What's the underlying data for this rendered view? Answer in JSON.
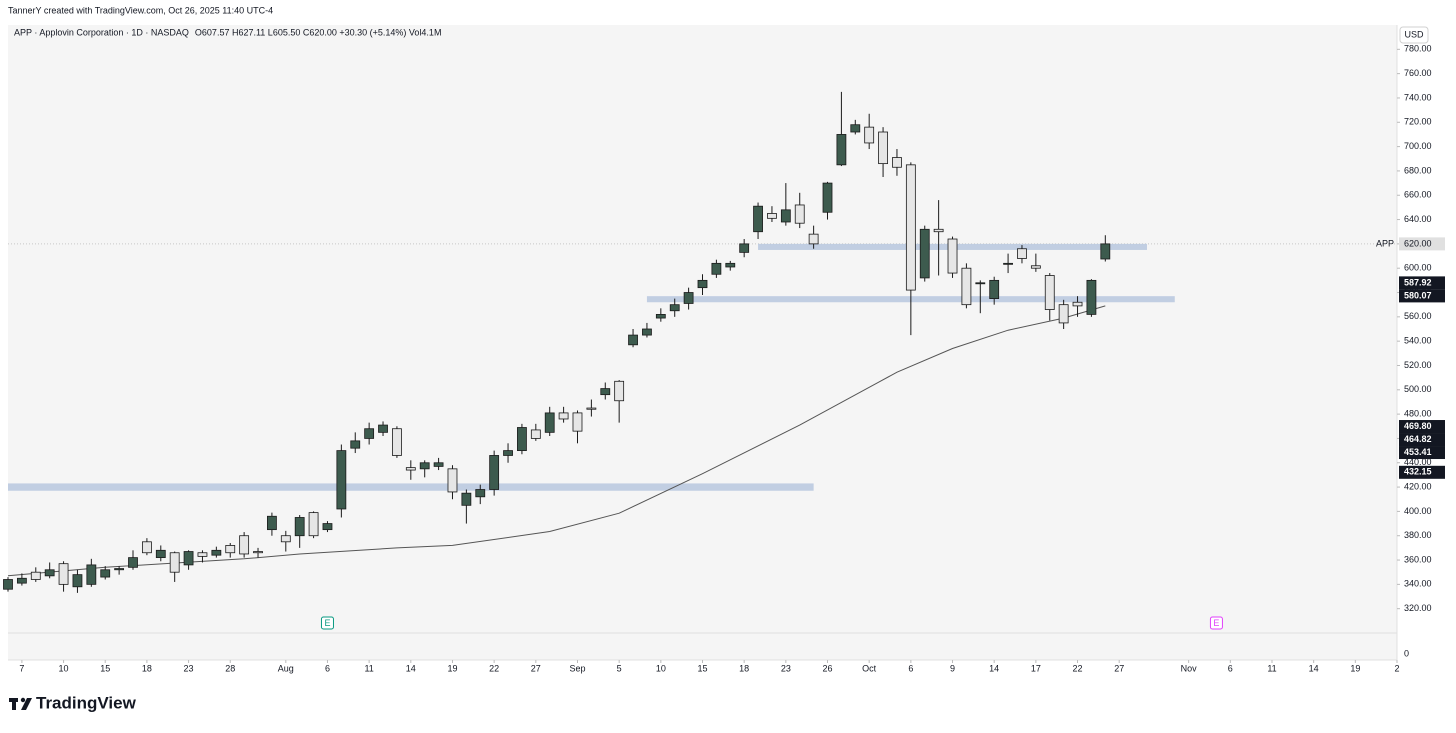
{
  "header": {
    "credit": "TannerY created with TradingView.com, Oct 26, 2025 11:40 UTC-4",
    "legend": "APP · Applovin Corporation · 1D · NASDAQ",
    "ohlc": "O607.57 H627.11 L605.50 C620.00 +30.30 (+5.14%) Vol4.1M",
    "currency": "USD"
  },
  "chart_data": {
    "type": "candlestick",
    "candles": {
      "x": [
        -1,
        0,
        1,
        2,
        3,
        4,
        5,
        6,
        7,
        8,
        9,
        10,
        11,
        12,
        13,
        14,
        15,
        16,
        17,
        18,
        19,
        20,
        21,
        22,
        23,
        24,
        25,
        26,
        27,
        28,
        29,
        30,
        31,
        32,
        33,
        34,
        35,
        36,
        37,
        38,
        39,
        40,
        41,
        42,
        43,
        44,
        45,
        46,
        47,
        48,
        49,
        50,
        51,
        52,
        53,
        54,
        55,
        56,
        57,
        58,
        59,
        60,
        61,
        62,
        63,
        64,
        65,
        66,
        67,
        68,
        69,
        70,
        71,
        72,
        73,
        74,
        75,
        76,
        77,
        78
      ],
      "open": [
        336,
        341,
        350,
        347,
        357,
        338,
        340,
        346,
        352,
        354,
        375,
        362,
        366,
        356,
        366,
        364,
        372,
        380,
        367,
        385,
        380,
        380,
        399,
        385,
        402,
        452,
        460,
        465,
        468,
        436,
        435,
        437,
        435,
        405,
        412,
        418,
        446,
        450,
        467,
        465,
        481,
        481,
        485,
        496,
        507,
        537,
        545,
        559,
        565,
        571,
        584,
        595,
        601,
        613,
        630,
        645,
        638,
        652,
        628,
        646,
        685,
        712,
        716,
        712,
        691,
        685,
        592,
        632,
        624,
        600,
        588,
        575,
        604,
        616,
        602,
        594,
        570,
        572,
        562,
        607.57
      ],
      "high": [
        346,
        349,
        354,
        358,
        359,
        352,
        361,
        355,
        355,
        368,
        378,
        372,
        367,
        368,
        368,
        371,
        374,
        383,
        370,
        399,
        384,
        397,
        400,
        392,
        455,
        465,
        473,
        474,
        470,
        442,
        442,
        444,
        438,
        418,
        422,
        450,
        456,
        472,
        472,
        486,
        486,
        483,
        492,
        506,
        508,
        550,
        555,
        567,
        575,
        584,
        595,
        607,
        606,
        624,
        654,
        651,
        670,
        662,
        635,
        671,
        745,
        722,
        727,
        716,
        698,
        687,
        635,
        656,
        626,
        604,
        590,
        593,
        612,
        619,
        612,
        596,
        574,
        577,
        591,
        627.11
      ],
      "low": [
        334,
        339,
        342,
        345,
        334,
        333,
        338,
        344,
        348,
        352,
        364,
        359,
        342,
        352,
        358,
        362,
        362,
        362,
        362,
        380,
        367,
        370,
        378,
        383,
        395,
        448,
        455,
        462,
        444,
        426,
        428,
        434,
        410,
        390,
        406,
        413,
        440,
        447,
        458,
        462,
        473,
        456,
        478,
        492,
        473,
        535,
        543,
        556,
        560,
        566,
        578,
        592,
        598,
        609,
        624,
        638,
        635,
        633,
        616,
        640,
        684,
        710,
        698,
        675,
        676,
        545,
        589,
        594,
        592,
        567,
        563,
        570,
        596,
        604,
        597,
        557,
        550,
        560,
        560,
        605.5
      ],
      "close": [
        344,
        345,
        344,
        352,
        340,
        348,
        356,
        352,
        353,
        362,
        366,
        368,
        350,
        367,
        363,
        368,
        366,
        365,
        366,
        396,
        375,
        395,
        380,
        390,
        450,
        458,
        468,
        471,
        446,
        434,
        440,
        440,
        416,
        415,
        418,
        446,
        450,
        469,
        460,
        481,
        476,
        466,
        484,
        501,
        491,
        545,
        550,
        562,
        570,
        580,
        590,
        604,
        604,
        620,
        651,
        641,
        648,
        637,
        620,
        670,
        710,
        718,
        703,
        686,
        683,
        582,
        632,
        630,
        596,
        570,
        588,
        590,
        604,
        608,
        600,
        566,
        555,
        569,
        590,
        620
      ],
      "up_color": "#3d5b4e",
      "down_color": "#e6e6e6"
    },
    "moving_average": {
      "x": [
        -1,
        6,
        16,
        20,
        27,
        31,
        38,
        43,
        49,
        56,
        63,
        67,
        71,
        75,
        78
      ],
      "values": [
        347,
        354,
        361,
        365,
        370,
        372,
        383.5,
        398.5,
        431,
        471,
        514.5,
        534,
        549,
        559,
        569
      ],
      "color": "#555555"
    },
    "zones": [
      {
        "from": -1,
        "to": 57,
        "low": 417,
        "high": 423
      },
      {
        "from": 45,
        "to": 83,
        "low": 572,
        "high": 577
      },
      {
        "from": 53,
        "to": 81,
        "low": 615,
        "high": 620
      }
    ],
    "zone_color": "#b7c7de",
    "last_price": {
      "symbol": "APP",
      "value": 620,
      "label": "620.00"
    },
    "price_badges": [
      587.92,
      580.07,
      {
        "value": 469.8,
        "label": "469.80"
      },
      464.82,
      453.41,
      432.15
    ],
    "events": [
      {
        "x": 22,
        "label": "E",
        "color": "#089981"
      },
      {
        "x": 86,
        "label": "E",
        "color": "#e040fb"
      }
    ],
    "xlim": [
      -1,
      99
    ],
    "ylim": [
      300,
      800
    ],
    "yticks": [
      {
        "value": 320,
        "label": "320.00"
      },
      {
        "value": 340,
        "label": "340.00"
      },
      {
        "value": 360,
        "label": "360.00"
      },
      {
        "value": 380,
        "label": "380.00"
      },
      {
        "value": 400,
        "label": "400.00"
      },
      {
        "value": 420,
        "label": "420.00"
      },
      {
        "value": 440,
        "label": "440.00"
      },
      {
        "value": 460,
        "label": "460.00"
      },
      {
        "value": 480,
        "label": "480.00"
      },
      {
        "value": 500,
        "label": "500.00"
      },
      {
        "value": 520,
        "label": "520.00"
      },
      {
        "value": 540,
        "label": "540.00"
      },
      {
        "value": 560,
        "label": "560.00"
      },
      {
        "value": 580,
        "label": "580.00"
      },
      {
        "value": 600,
        "label": "600.00"
      },
      {
        "value": 620,
        "label": "620.00"
      },
      {
        "value": 640,
        "label": "640.00"
      },
      {
        "value": 660,
        "label": "660.00"
      },
      {
        "value": 680,
        "label": "680.00"
      },
      {
        "value": 700,
        "label": "700.00"
      },
      {
        "value": 720,
        "label": "720.00"
      },
      {
        "value": 740,
        "label": "740.00"
      },
      {
        "value": 760,
        "label": "760.00"
      },
      {
        "value": 780,
        "label": "780.00"
      }
    ],
    "xticks": [
      {
        "value": 0,
        "label": "7"
      },
      {
        "value": 3,
        "label": "10"
      },
      {
        "value": 6,
        "label": "15"
      },
      {
        "value": 9,
        "label": "18"
      },
      {
        "value": 12,
        "label": "23"
      },
      {
        "value": 15,
        "label": "28"
      },
      {
        "value": 19,
        "label": "Aug"
      },
      {
        "value": 22,
        "label": "6"
      },
      {
        "value": 25,
        "label": "11"
      },
      {
        "value": 28,
        "label": "14"
      },
      {
        "value": 31,
        "label": "19"
      },
      {
        "value": 34,
        "label": "22"
      },
      {
        "value": 37,
        "label": "27"
      },
      {
        "value": 40,
        "label": "Sep"
      },
      {
        "value": 43,
        "label": "5"
      },
      {
        "value": 46,
        "label": "10"
      },
      {
        "value": 49,
        "label": "15"
      },
      {
        "value": 52,
        "label": "18"
      },
      {
        "value": 55,
        "label": "23"
      },
      {
        "value": 58,
        "label": "26"
      },
      {
        "value": 61,
        "label": "Oct"
      },
      {
        "value": 64,
        "label": "6"
      },
      {
        "value": 67,
        "label": "9"
      },
      {
        "value": 70,
        "label": "14"
      },
      {
        "value": 73,
        "label": "17"
      },
      {
        "value": 76,
        "label": "22"
      },
      {
        "value": 79,
        "label": "27"
      },
      {
        "value": 84,
        "label": "Nov"
      },
      {
        "value": 87,
        "label": "6"
      },
      {
        "value": 90,
        "label": "11"
      },
      {
        "value": 93,
        "label": "14"
      },
      {
        "value": 96,
        "label": "19"
      },
      {
        "value": 99,
        "label": "2"
      }
    ],
    "volume_ticks": [
      0
    ]
  },
  "footer": {
    "brand": "TradingView"
  }
}
